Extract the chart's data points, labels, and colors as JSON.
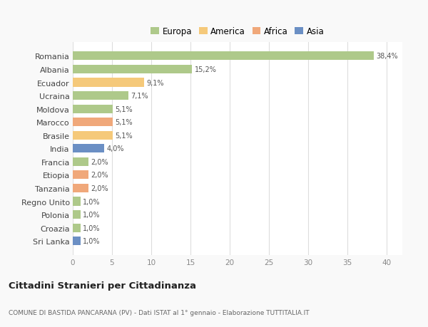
{
  "countries": [
    "Romania",
    "Albania",
    "Ecuador",
    "Ucraina",
    "Moldova",
    "Marocco",
    "Brasile",
    "India",
    "Francia",
    "Etiopia",
    "Tanzania",
    "Regno Unito",
    "Polonia",
    "Croazia",
    "Sri Lanka"
  ],
  "values": [
    38.4,
    15.2,
    9.1,
    7.1,
    5.1,
    5.1,
    5.1,
    4.0,
    2.0,
    2.0,
    2.0,
    1.0,
    1.0,
    1.0,
    1.0
  ],
  "labels": [
    "38,4%",
    "15,2%",
    "9,1%",
    "7,1%",
    "5,1%",
    "5,1%",
    "5,1%",
    "4,0%",
    "2,0%",
    "2,0%",
    "2,0%",
    "1,0%",
    "1,0%",
    "1,0%",
    "1,0%"
  ],
  "colors": [
    "#aec98a",
    "#aec98a",
    "#f5c97a",
    "#aec98a",
    "#aec98a",
    "#f0a87a",
    "#f5c97a",
    "#6b8fc4",
    "#aec98a",
    "#f0a87a",
    "#f0a87a",
    "#aec98a",
    "#aec98a",
    "#aec98a",
    "#6b8fc4"
  ],
  "legend_labels": [
    "Europa",
    "America",
    "Africa",
    "Asia"
  ],
  "legend_colors": [
    "#aec98a",
    "#f5c97a",
    "#f0a87a",
    "#6b8fc4"
  ],
  "title": "Cittadini Stranieri per Cittadinanza",
  "subtitle": "COMUNE DI BASTIDA PANCARANA (PV) - Dati ISTAT al 1° gennaio - Elaborazione TUTTITALIA.IT",
  "xlim": [
    0,
    42
  ],
  "xticks": [
    0,
    5,
    10,
    15,
    20,
    25,
    30,
    35,
    40
  ],
  "bg_color": "#f9f9f9",
  "bar_bg_color": "#ffffff",
  "grid_color": "#dddddd"
}
